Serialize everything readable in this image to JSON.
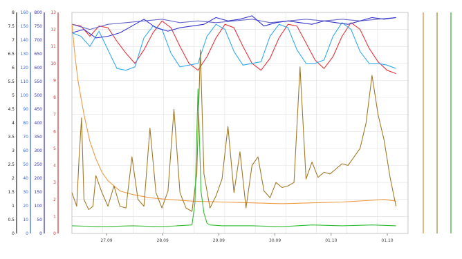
{
  "chart_data": {
    "type": "line",
    "title": "",
    "xlabel": "",
    "ylabel": "",
    "x_ticks": [
      "27.09",
      "28.09",
      "29.09",
      "30.09",
      "01.10",
      "01.10"
    ],
    "x_range": [
      0,
      5.6
    ],
    "grid": true,
    "legend_placement": "bottom",
    "left_axes": [
      {
        "color": "#222222",
        "ticks": [
          "0",
          "0.5",
          "1",
          "1.5",
          "2",
          "2.5",
          "3",
          "3.5",
          "4",
          "4.5",
          "5",
          "5.5",
          "6",
          "6.5",
          "7",
          "7.5",
          "8"
        ]
      },
      {
        "color": "#3366cc",
        "ticks": [
          "0",
          "10",
          "20",
          "30",
          "40",
          "50",
          "60",
          "70",
          "80",
          "90",
          "100",
          "110",
          "120",
          "130",
          "140",
          "150",
          "160"
        ]
      },
      {
        "color": "#3333aa",
        "ticks": [
          "0",
          "50",
          "100",
          "150",
          "200",
          "250",
          "300",
          "350",
          "400",
          "450",
          "500",
          "550",
          "600",
          "650",
          "700",
          "750",
          "800"
        ]
      },
      {
        "color": "#cc3333",
        "ticks": [
          "0",
          "1",
          "2",
          "3",
          "4",
          "5",
          "6",
          "7",
          "8",
          "9",
          "10",
          "11",
          "12",
          "13"
        ]
      }
    ],
    "right_axes": [
      {
        "color": "#dd8833",
        "ticks": []
      },
      {
        "color": "#998833",
        "ticks": []
      },
      {
        "color": "#33aa33",
        "ticks": []
      }
    ],
    "series": [
      {
        "name": "",
        "color": "#e8323c",
        "axis": "L3",
        "x": [
          0,
          0.15,
          0.3,
          0.45,
          0.6,
          0.75,
          0.9,
          1.05,
          1.2,
          1.35,
          1.5,
          1.65,
          1.8,
          1.95,
          2.1,
          2.25,
          2.4,
          2.55,
          2.7,
          2.85,
          3.0,
          3.15,
          3.3,
          3.45,
          3.6,
          3.75,
          3.9,
          4.05,
          4.2,
          4.35,
          4.5,
          4.65,
          4.8,
          4.95,
          5.1,
          5.25,
          5.4
        ],
        "y": [
          12.3,
          12.2,
          11.6,
          12.2,
          12.1,
          11.3,
          10.6,
          10.0,
          10.8,
          11.8,
          12.5,
          12.1,
          11.0,
          10.0,
          9.6,
          10.4,
          11.5,
          12.3,
          12.1,
          11.0,
          10.0,
          9.6,
          10.3,
          11.5,
          12.3,
          12.2,
          11.2,
          10.2,
          9.7,
          10.4,
          11.6,
          12.4,
          12.0,
          10.9,
          10.1,
          9.6,
          9.4
        ]
      },
      {
        "name": "",
        "color": "#6666cc",
        "axis": "L3",
        "x": [
          0,
          0.3,
          0.6,
          0.9,
          1.2,
          1.5,
          1.8,
          2.1,
          2.4,
          2.7,
          3.0,
          3.3,
          3.6,
          3.9,
          4.2,
          4.5,
          4.8,
          5.1,
          5.4
        ],
        "y": [
          12.3,
          12.0,
          12.3,
          12.4,
          12.5,
          12.6,
          12.4,
          12.5,
          12.4,
          12.5,
          12.6,
          12.4,
          12.5,
          12.6,
          12.5,
          12.6,
          12.5,
          12.6,
          12.7
        ]
      },
      {
        "name": "",
        "color": "#33aaee",
        "axis": "L3",
        "x": [
          0,
          0.15,
          0.3,
          0.45,
          0.6,
          0.75,
          0.9,
          1.05,
          1.2,
          1.35,
          1.5,
          1.65,
          1.8,
          1.95,
          2.1,
          2.25,
          2.4,
          2.55,
          2.7,
          2.85,
          3.0,
          3.15,
          3.3,
          3.45,
          3.6,
          3.75,
          3.9,
          4.05,
          4.2,
          4.35,
          4.5,
          4.65,
          4.8,
          4.95,
          5.1,
          5.25,
          5.4
        ],
        "y": [
          11.8,
          11.6,
          11.0,
          11.9,
          10.8,
          9.7,
          9.6,
          9.8,
          11.5,
          12.2,
          12.0,
          10.6,
          9.8,
          9.9,
          10.0,
          11.6,
          12.3,
          12.0,
          10.7,
          9.9,
          10.0,
          10.1,
          11.6,
          12.3,
          12.1,
          10.8,
          10.0,
          10.0,
          10.2,
          11.6,
          12.4,
          12.0,
          10.7,
          10.0,
          10.0,
          9.9,
          9.7
        ]
      },
      {
        "name": "",
        "color": "#3333cc",
        "axis": "L3",
        "x": [
          0,
          0.2,
          0.4,
          0.6,
          0.8,
          1.0,
          1.2,
          1.4,
          1.6,
          1.8,
          2.0,
          2.2,
          2.4,
          2.6,
          2.8,
          3.0,
          3.2,
          3.4,
          3.6,
          3.8,
          4.0,
          4.2,
          4.4,
          4.6,
          4.8,
          5.0,
          5.2,
          5.4
        ],
        "y": [
          11.8,
          12.0,
          11.5,
          11.6,
          11.8,
          12.2,
          12.6,
          12.1,
          11.9,
          12.1,
          12.2,
          12.3,
          12.7,
          12.5,
          12.6,
          12.8,
          12.2,
          12.4,
          12.5,
          12.4,
          12.3,
          12.5,
          12.4,
          12.3,
          12.5,
          12.7,
          12.6,
          12.7
        ]
      },
      {
        "name": "",
        "color": "#ee9944",
        "axis": "L3",
        "x": [
          0,
          0.05,
          0.1,
          0.15,
          0.2,
          0.25,
          0.3,
          0.4,
          0.5,
          0.6,
          0.7,
          0.8,
          1.0,
          1.3,
          1.6,
          2.0,
          2.5,
          3.0,
          3.5,
          4.0,
          4.5,
          5.0,
          5.2,
          5.4
        ],
        "y": [
          12.3,
          10.5,
          9.0,
          8.0,
          7.0,
          6.2,
          5.4,
          4.4,
          3.6,
          3.1,
          2.8,
          2.5,
          2.3,
          2.1,
          2.0,
          1.9,
          1.85,
          1.8,
          1.75,
          1.8,
          1.85,
          1.95,
          2.0,
          1.9
        ]
      },
      {
        "name": "",
        "color": "#a07828",
        "axis": "L3",
        "x": [
          0,
          0.08,
          0.12,
          0.16,
          0.2,
          0.28,
          0.35,
          0.4,
          0.5,
          0.6,
          0.7,
          0.8,
          0.9,
          1.0,
          1.1,
          1.2,
          1.3,
          1.4,
          1.5,
          1.6,
          1.7,
          1.8,
          1.9,
          2.0,
          2.08,
          2.14,
          2.2,
          2.3,
          2.4,
          2.5,
          2.6,
          2.7,
          2.8,
          2.9,
          3.0,
          3.1,
          3.2,
          3.3,
          3.4,
          3.5,
          3.6,
          3.7,
          3.8,
          3.9,
          4.0,
          4.1,
          4.2,
          4.3,
          4.4,
          4.5,
          4.6,
          4.7,
          4.8,
          4.9,
          5.0,
          5.1,
          5.2,
          5.3,
          5.4
        ],
        "y": [
          2.4,
          1.6,
          4.5,
          6.8,
          2.0,
          1.4,
          1.6,
          3.4,
          2.4,
          1.6,
          2.8,
          1.6,
          1.5,
          4.5,
          2.0,
          1.6,
          6.2,
          2.4,
          1.5,
          2.5,
          7.3,
          2.4,
          1.5,
          1.3,
          3.5,
          10.8,
          3.5,
          1.5,
          2.2,
          3.2,
          6.3,
          2.4,
          4.8,
          1.5,
          4.0,
          4.5,
          2.5,
          2.1,
          3.0,
          2.7,
          2.8,
          3.0,
          9.8,
          3.2,
          4.2,
          3.3,
          3.6,
          3.5,
          3.8,
          4.1,
          4.0,
          4.5,
          5.0,
          6.5,
          9.3,
          7.0,
          5.5,
          3.3,
          1.6
        ]
      },
      {
        "name": "",
        "color": "#33bb33",
        "axis": "L3",
        "x": [
          0,
          0.5,
          1.0,
          1.5,
          2.0,
          2.05,
          2.1,
          2.15,
          2.2,
          2.25,
          2.3,
          2.5,
          3.0,
          3.5,
          4.0,
          4.5,
          5.0,
          5.4
        ],
        "y": [
          0.45,
          0.4,
          0.45,
          0.4,
          0.5,
          1.8,
          8.5,
          2.5,
          1.2,
          0.6,
          0.5,
          0.45,
          0.45,
          0.4,
          0.5,
          0.45,
          0.5,
          0.45
        ]
      }
    ]
  }
}
